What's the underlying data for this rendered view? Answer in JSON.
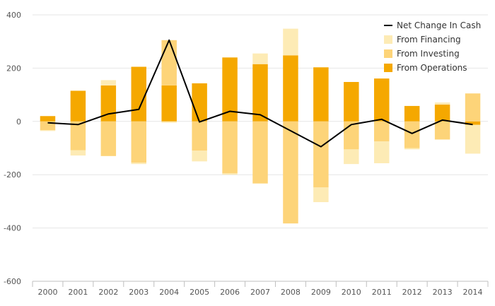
{
  "chart_data": {
    "type": "bar",
    "title": "",
    "xlabel": "",
    "ylabel": "",
    "ylim": [
      -600,
      400
    ],
    "y_ticks": [
      "-600",
      "-400",
      "-200",
      "0",
      "200",
      "400"
    ],
    "y_tick_values": [
      -600,
      -400,
      -200,
      0,
      200,
      400
    ],
    "categories": [
      "2000",
      "2001",
      "2002",
      "2003",
      "2004",
      "2005",
      "2006",
      "2007",
      "2008",
      "2009",
      "2010",
      "2011",
      "2012",
      "2013",
      "2014"
    ],
    "stacked": true,
    "grid": true,
    "legend_position": "top-right",
    "series": [
      {
        "name": "From Operations",
        "type": "bar",
        "color": "#f5a800",
        "values": [
          20,
          115,
          135,
          205,
          135,
          143,
          240,
          215,
          248,
          203,
          148,
          161,
          58,
          63,
          -13
        ]
      },
      {
        "name": "From Investing",
        "type": "bar",
        "color": "#fdd479",
        "values": [
          -33,
          -108,
          -130,
          -155,
          170,
          -110,
          -195,
          -233,
          -383,
          -248,
          -105,
          -75,
          -100,
          -68,
          105
        ]
      },
      {
        "name": "From Financing",
        "type": "bar",
        "color": "#fdebb5",
        "values": [
          -3,
          -20,
          20,
          -5,
          -5,
          -40,
          -5,
          40,
          100,
          -55,
          -55,
          -82,
          -5,
          8,
          -108
        ]
      },
      {
        "name": "Net Change In Cash",
        "type": "line",
        "color": "#000000",
        "values": [
          -5,
          -12,
          28,
          45,
          305,
          -2,
          38,
          25,
          -35,
          -95,
          -12,
          8,
          -45,
          5,
          -12
        ]
      }
    ],
    "legend": [
      "Net Change In Cash",
      "From Financing",
      "From Investing",
      "From Operations"
    ]
  }
}
